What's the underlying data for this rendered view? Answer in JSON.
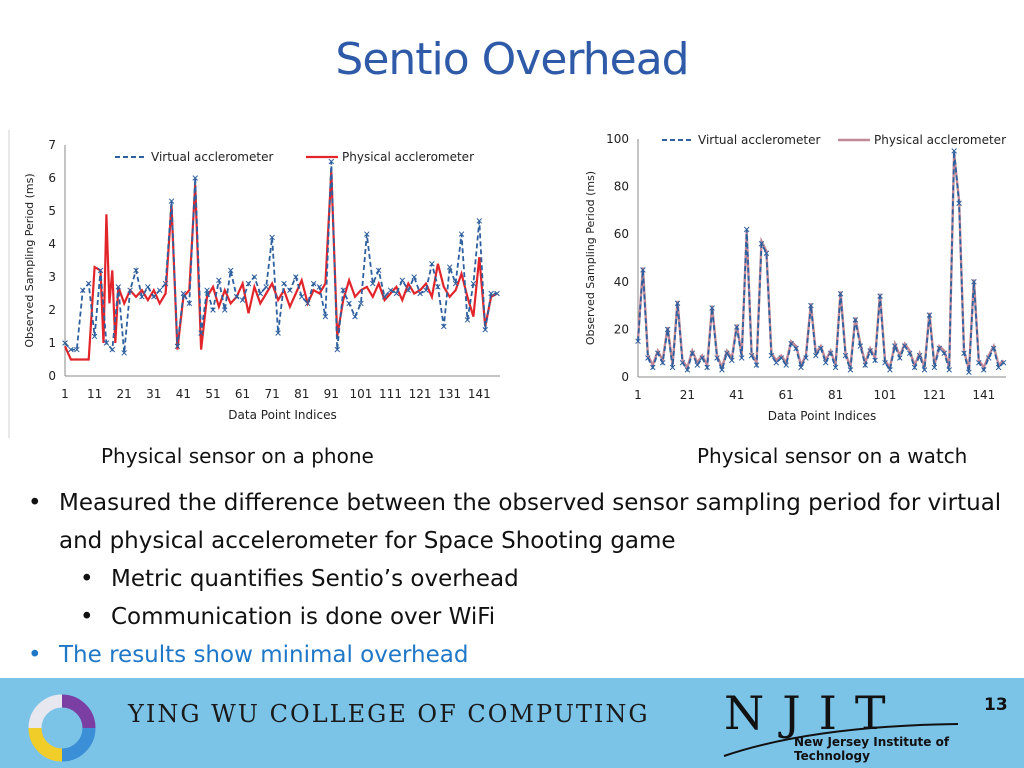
{
  "title": "Sentio Overhead",
  "captions": {
    "left": "Physical sensor on a phone",
    "right": "Physical sensor on a watch"
  },
  "bullets": {
    "b1": "Measured the difference between the observed sensor sampling period for virtual and physical accelerometer for Space Shooting game",
    "b1a": "Metric quantifies Sentio’s overhead",
    "b1b": "Communication is done over WiFi",
    "b2": "The results show minimal overhead"
  },
  "footer": {
    "college": "YING WU COLLEGE OF COMPUTING",
    "logo": "NJIT",
    "institute": "New Jersey Institute of Technology",
    "page": "13"
  },
  "colors": {
    "virtual_phone": "#2e5f9e",
    "physical_phone": "#e2242b",
    "virtual_watch": "#2e5f9e",
    "physical_watch": "#c08a98",
    "title": "#2e5aa8",
    "footer": "#7cc3e8"
  },
  "chart_data": [
    {
      "type": "line",
      "xlabel": "Data Point Indices",
      "ylabel": "Observed Sampling Period (ms)",
      "ylim": [
        0,
        7
      ],
      "yticks": [
        "0",
        "1",
        "2",
        "3",
        "4",
        "5",
        "6",
        "7"
      ],
      "xticks": [
        "1",
        "11",
        "21",
        "31",
        "41",
        "51",
        "61",
        "71",
        "81",
        "91",
        "101",
        "111",
        "121",
        "131",
        "141"
      ],
      "xlim": [
        1,
        148
      ],
      "legend": "top",
      "series": [
        {
          "name": "Virtual acclerometer",
          "style": "dashed-x",
          "x": [
            1,
            3,
            5,
            7,
            9,
            11,
            13,
            15,
            17,
            19,
            21,
            23,
            25,
            27,
            29,
            31,
            33,
            35,
            37,
            39,
            41,
            43,
            45,
            47,
            49,
            51,
            53,
            55,
            57,
            59,
            61,
            63,
            65,
            67,
            69,
            71,
            73,
            75,
            77,
            79,
            81,
            83,
            85,
            87,
            89,
            91,
            93,
            95,
            97,
            99,
            101,
            103,
            105,
            107,
            109,
            111,
            113,
            115,
            117,
            119,
            121,
            123,
            125,
            127,
            129,
            131,
            133,
            135,
            137,
            139,
            141,
            143,
            145,
            147
          ],
          "y": [
            1.0,
            0.8,
            0.8,
            2.6,
            2.8,
            1.2,
            3.2,
            1.0,
            0.8,
            2.7,
            0.7,
            2.6,
            3.2,
            2.4,
            2.7,
            2.4,
            2.6,
            2.8,
            5.3,
            0.9,
            2.5,
            2.2,
            6.0,
            1.3,
            2.6,
            2.0,
            2.9,
            2.0,
            3.2,
            2.4,
            2.3,
            2.8,
            3.0,
            2.5,
            2.7,
            4.2,
            1.3,
            2.8,
            2.6,
            3.0,
            2.4,
            2.2,
            2.8,
            2.7,
            1.8,
            6.5,
            0.8,
            2.6,
            2.2,
            1.8,
            2.2,
            4.3,
            2.8,
            3.2,
            2.4,
            2.6,
            2.5,
            2.9,
            2.6,
            3.0,
            2.5,
            2.6,
            3.4,
            2.7,
            1.5,
            3.3,
            2.8,
            4.3,
            1.7,
            2.8,
            4.7,
            1.4,
            2.5,
            2.5
          ]
        },
        {
          "name": "Physical acclerometer",
          "style": "solid",
          "x": [
            1,
            3,
            5,
            7,
            9,
            11,
            13,
            14,
            15,
            16,
            17,
            18,
            19,
            21,
            23,
            25,
            27,
            29,
            31,
            33,
            35,
            37,
            39,
            41,
            43,
            45,
            47,
            49,
            51,
            53,
            55,
            57,
            59,
            61,
            63,
            65,
            67,
            69,
            71,
            73,
            75,
            77,
            79,
            81,
            83,
            85,
            87,
            89,
            91,
            93,
            95,
            97,
            99,
            101,
            103,
            105,
            107,
            109,
            111,
            113,
            115,
            117,
            119,
            121,
            123,
            125,
            127,
            129,
            131,
            133,
            135,
            137,
            139,
            141,
            143,
            145,
            147
          ],
          "y": [
            0.9,
            0.5,
            0.5,
            0.5,
            0.5,
            3.3,
            3.2,
            1.0,
            4.9,
            2.2,
            3.2,
            1.0,
            2.7,
            2.2,
            2.6,
            2.4,
            2.6,
            2.3,
            2.6,
            2.2,
            2.5,
            5.2,
            0.8,
            2.4,
            2.6,
            5.8,
            0.8,
            2.4,
            2.7,
            2.1,
            2.6,
            2.2,
            2.4,
            2.8,
            1.9,
            2.7,
            2.2,
            2.5,
            2.8,
            2.3,
            2.6,
            2.1,
            2.5,
            2.9,
            2.2,
            2.6,
            2.5,
            2.8,
            6.2,
            1.2,
            2.3,
            2.9,
            2.4,
            2.6,
            2.7,
            2.4,
            2.8,
            2.3,
            2.5,
            2.7,
            2.3,
            2.8,
            2.5,
            2.6,
            2.8,
            2.4,
            3.4,
            2.7,
            2.4,
            2.6,
            3.1,
            2.4,
            1.8,
            3.6,
            1.5,
            2.4,
            2.5
          ]
        }
      ]
    },
    {
      "type": "line",
      "xlabel": "Data Point Indices",
      "ylabel": "Observed Sampling Period (ms)",
      "ylim": [
        0,
        100
      ],
      "yticks": [
        "0",
        "20",
        "40",
        "60",
        "80",
        "100"
      ],
      "xticks": [
        "1",
        "21",
        "41",
        "61",
        "81",
        "101",
        "121",
        "141"
      ],
      "xlim": [
        1,
        150
      ],
      "legend": "top",
      "series": [
        {
          "name": "Virtual acclerometer",
          "style": "dashed-x",
          "x": [
            1,
            3,
            5,
            7,
            9,
            11,
            13,
            15,
            17,
            19,
            21,
            23,
            25,
            27,
            29,
            31,
            33,
            35,
            37,
            39,
            41,
            43,
            45,
            47,
            49,
            51,
            53,
            55,
            57,
            59,
            61,
            63,
            65,
            67,
            69,
            71,
            73,
            75,
            77,
            79,
            81,
            83,
            85,
            87,
            89,
            91,
            93,
            95,
            97,
            99,
            101,
            103,
            105,
            107,
            109,
            111,
            113,
            115,
            117,
            119,
            121,
            123,
            125,
            127,
            129,
            131,
            133,
            135,
            137,
            139,
            141,
            143,
            145,
            147,
            149
          ],
          "y": [
            15,
            45,
            8,
            4,
            10,
            6,
            20,
            4,
            31,
            6,
            3,
            10,
            5,
            8,
            4,
            29,
            8,
            3,
            10,
            7,
            21,
            8,
            62,
            9,
            5,
            56,
            52,
            9,
            6,
            8,
            5,
            14,
            12,
            4,
            8,
            30,
            9,
            12,
            6,
            10,
            4,
            35,
            9,
            3,
            24,
            13,
            5,
            11,
            7,
            34,
            6,
            3,
            13,
            8,
            13,
            10,
            4,
            9,
            3,
            26,
            4,
            12,
            10,
            3,
            95,
            73,
            10,
            2,
            40,
            6,
            3,
            8,
            12,
            4,
            6
          ],
          "markers": true
        },
        {
          "name": "Physical acclerometer",
          "style": "solid",
          "x": [
            1,
            3,
            5,
            7,
            9,
            11,
            13,
            15,
            17,
            19,
            21,
            23,
            25,
            27,
            29,
            31,
            33,
            35,
            37,
            39,
            41,
            43,
            45,
            47,
            49,
            51,
            53,
            55,
            57,
            59,
            61,
            63,
            65,
            67,
            69,
            71,
            73,
            75,
            77,
            79,
            81,
            83,
            85,
            87,
            89,
            91,
            93,
            95,
            97,
            99,
            101,
            103,
            105,
            107,
            109,
            111,
            113,
            115,
            117,
            119,
            121,
            123,
            125,
            127,
            129,
            131,
            133,
            135,
            137,
            139,
            141,
            143,
            145,
            147,
            149
          ],
          "y": [
            16,
            46,
            9,
            5,
            11,
            7,
            21,
            5,
            32,
            7,
            4,
            11,
            6,
            9,
            5,
            30,
            9,
            4,
            11,
            8,
            22,
            9,
            61,
            10,
            6,
            57,
            53,
            10,
            7,
            9,
            6,
            15,
            13,
            5,
            9,
            31,
            10,
            13,
            7,
            11,
            5,
            36,
            10,
            4,
            25,
            14,
            6,
            12,
            8,
            35,
            7,
            4,
            14,
            9,
            14,
            11,
            5,
            10,
            4,
            27,
            5,
            13,
            11,
            4,
            94,
            74,
            11,
            3,
            41,
            7,
            4,
            9,
            13,
            5,
            7
          ]
        }
      ]
    }
  ]
}
